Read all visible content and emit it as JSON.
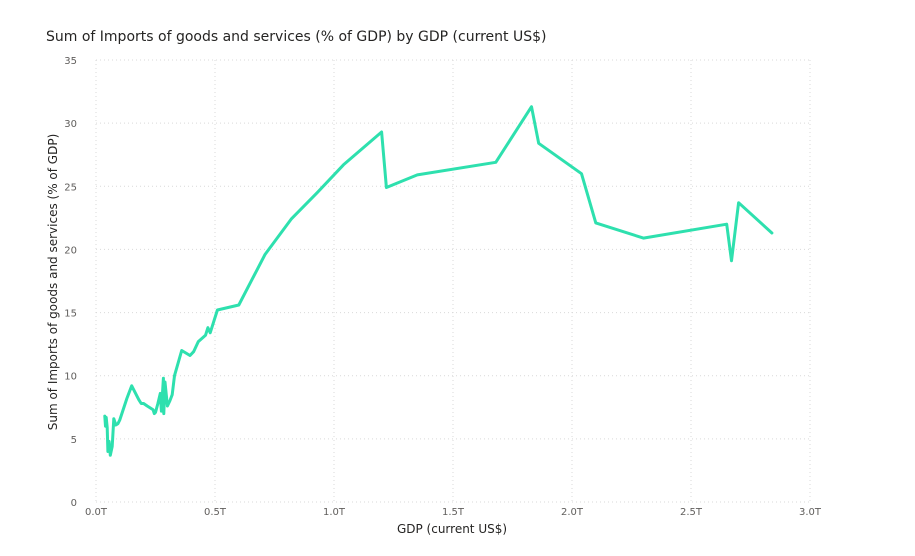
{
  "chart_data": {
    "type": "line",
    "title": "Sum of Imports of goods and services (% of GDP) by GDP (current US$)",
    "xlabel": "GDP (current US$)",
    "ylabel": "Sum of Imports of goods and services (% of GDP)",
    "xlim": [
      0,
      3.0
    ],
    "ylim": [
      0,
      35
    ],
    "x_ticks": [
      0,
      0.5,
      1.0,
      1.5,
      2.0,
      2.5,
      3.0
    ],
    "x_tick_labels": [
      "0.0T",
      "0.5T",
      "1.0T",
      "1.5T",
      "2.0T",
      "2.5T",
      "3.0T"
    ],
    "y_ticks": [
      0,
      5,
      10,
      15,
      20,
      25,
      30,
      35
    ],
    "y_tick_labels": [
      "0",
      "5",
      "10",
      "15",
      "20",
      "25",
      "30",
      "35"
    ],
    "grid": true,
    "color": "#2ee0ae",
    "series": [
      {
        "x_unit": "trillion current US$",
        "x": [
          0.037,
          0.04,
          0.043,
          0.047,
          0.05,
          0.055,
          0.06,
          0.068,
          0.075,
          0.083,
          0.092,
          0.1,
          0.13,
          0.15,
          0.18,
          0.19,
          0.2,
          0.215,
          0.24,
          0.245,
          0.25,
          0.26,
          0.27,
          0.275,
          0.283,
          0.285,
          0.29,
          0.3,
          0.31,
          0.32,
          0.33,
          0.36,
          0.395,
          0.41,
          0.43,
          0.46,
          0.47,
          0.48,
          0.51,
          0.6,
          0.71,
          0.82,
          0.93,
          1.04,
          1.2,
          1.22,
          1.35,
          1.68,
          1.83,
          1.86,
          2.04,
          2.1,
          2.3,
          2.65,
          2.67,
          2.7,
          2.84
        ],
        "y": [
          6.8,
          6.0,
          6.7,
          5.9,
          4.0,
          4.8,
          3.7,
          4.4,
          6.6,
          6.1,
          6.2,
          6.5,
          8.2,
          9.2,
          8.1,
          7.8,
          7.8,
          7.6,
          7.3,
          7.0,
          7.1,
          7.8,
          8.6,
          7.2,
          9.8,
          7.0,
          9.5,
          7.6,
          8.0,
          8.5,
          10.0,
          12.0,
          11.6,
          11.9,
          12.7,
          13.2,
          13.8,
          13.4,
          15.2,
          15.6,
          19.6,
          22.4,
          24.5,
          26.7,
          29.3,
          24.9,
          25.9,
          26.9,
          31.3,
          28.4,
          26.0,
          22.1,
          20.9,
          22.0,
          19.1,
          23.7,
          21.3
        ]
      }
    ]
  }
}
